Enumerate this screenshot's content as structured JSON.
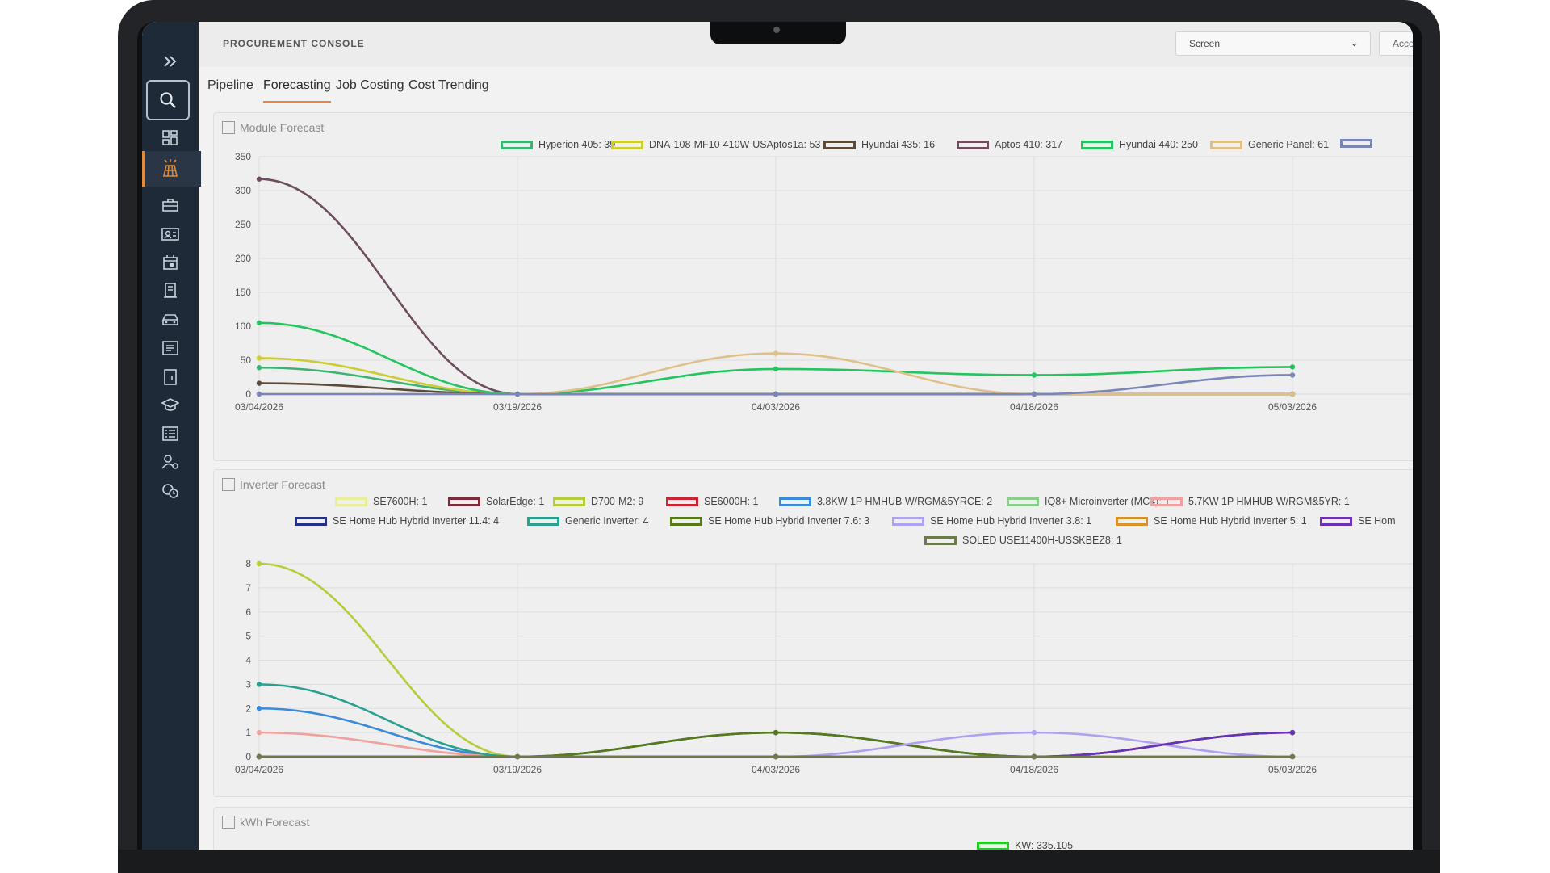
{
  "app": {
    "console_title": "PROCUREMENT CONSOLE",
    "screen_select": "Screen",
    "account_button": "Acco"
  },
  "tabs": [
    {
      "label": "Pipeline"
    },
    {
      "label": "Forecasting",
      "active": true
    },
    {
      "label": "Job Costing"
    },
    {
      "label": "Cost Trending"
    }
  ],
  "sidebar": {
    "icons": [
      "expand-icon",
      "search-icon",
      "dashboard-icon",
      "solar-panel-icon",
      "briefcase-icon",
      "contact-card-icon",
      "calendar-icon",
      "document-icon",
      "car-icon",
      "list-icon",
      "tablet-icon",
      "graduation-icon",
      "checklist-icon",
      "user-settings-icon",
      "user-time-icon"
    ],
    "accent_color": "#e08a3c"
  },
  "chart_data": [
    {
      "title": "Module Forecast",
      "type": "line",
      "x": [
        "03/04/2026",
        "03/19/2026",
        "04/03/2026",
        "04/18/2026",
        "05/03/2026"
      ],
      "ylim": [
        0,
        350
      ],
      "yticks": [
        0,
        50,
        100,
        150,
        200,
        250,
        300,
        350
      ],
      "series": [
        {
          "name": "Hyperion 405: 39",
          "color": "#3cb371",
          "values": [
            39,
            0,
            0,
            0,
            0
          ]
        },
        {
          "name": "DNA-108-MF10-410W-USAptos1a: 53",
          "color": "#cccc33",
          "values": [
            53,
            0,
            0,
            0,
            0
          ]
        },
        {
          "name": "Hyundai 435: 16",
          "color": "#5a4a3a",
          "values": [
            16,
            0,
            0,
            0,
            0
          ]
        },
        {
          "name": "Aptos 410: 317",
          "color": "#6e4e5e",
          "values": [
            317,
            0,
            0,
            0,
            0
          ]
        },
        {
          "name": "Hyundai 440: 250",
          "color": "#22c55e",
          "values": [
            105,
            0,
            37,
            28,
            40
          ]
        },
        {
          "name": "Generic Panel: 61",
          "color": "#e0c08a",
          "values": [
            0,
            0,
            60,
            0,
            0
          ]
        },
        {
          "name": "",
          "color": "#7a86b8",
          "values": [
            0,
            0,
            0,
            0,
            28
          ]
        }
      ]
    },
    {
      "title": "Inverter Forecast",
      "type": "line",
      "x": [
        "03/04/2026",
        "03/19/2026",
        "04/03/2026",
        "04/18/2026",
        "05/03/2026"
      ],
      "ylim": [
        0,
        8
      ],
      "yticks": [
        0,
        1,
        2,
        3,
        4,
        5,
        6,
        7,
        8
      ],
      "series": [
        {
          "name": "SE7600H: 1",
          "color": "#e8ee9a",
          "values": [
            1,
            0,
            0,
            0,
            0
          ]
        },
        {
          "name": "SolarEdge: 1",
          "color": "#7a2a3a",
          "values": [
            0,
            0,
            0,
            0,
            0
          ]
        },
        {
          "name": "D700-M2: 9",
          "color": "#b8cc3a",
          "values": [
            8,
            0,
            0,
            0,
            0
          ]
        },
        {
          "name": "SE6000H: 1",
          "color": "#cc2233",
          "values": [
            0,
            0,
            0,
            0,
            0
          ]
        },
        {
          "name": "3.8KW 1P HMHUB W/RGM&5YRCE: 2",
          "color": "#3a8ad8",
          "values": [
            2,
            0,
            0,
            0,
            0
          ]
        },
        {
          "name": "IQ8+ Microinverter (MC4): 1",
          "color": "#8ccc8c",
          "values": [
            0,
            0,
            0,
            0,
            0
          ]
        },
        {
          "name": "5.7KW 1P HMHUB W/RGM&5YR: 1",
          "color": "#f0a0a0",
          "values": [
            1,
            0,
            0,
            0,
            0
          ]
        },
        {
          "name": "SE Home Hub Hybrid Inverter 11.4: 4",
          "color": "#22308a",
          "values": [
            0,
            0,
            1,
            0,
            1
          ]
        },
        {
          "name": "Generic Inverter: 4",
          "color": "#2aa090",
          "values": [
            3,
            0,
            0,
            0,
            0
          ]
        },
        {
          "name": "SE Home Hub Hybrid Inverter 7.6: 3",
          "color": "#557a1a",
          "values": [
            0,
            0,
            1,
            0,
            1
          ]
        },
        {
          "name": "SE Home Hub Hybrid Inverter 3.8: 1",
          "color": "#b0a0f0",
          "values": [
            0,
            0,
            0,
            1,
            0
          ]
        },
        {
          "name": "SE Home Hub Hybrid Inverter 5: 1",
          "color": "#d8922a",
          "values": [
            0,
            0,
            0,
            0,
            0
          ]
        },
        {
          "name": "SE Hom",
          "color": "#6a30b8",
          "values": [
            0,
            0,
            0,
            0,
            1
          ]
        },
        {
          "name": "SOLED USE11400H-USSKBEZ8: 1",
          "color": "#6a7a4a",
          "values": [
            0,
            0,
            0,
            0,
            0
          ]
        }
      ]
    },
    {
      "title": "kWh Forecast",
      "type": "line",
      "ytick_top": "250",
      "series": [
        {
          "name": "KW: 335.105",
          "color": "#22cc22",
          "values": []
        }
      ]
    }
  ]
}
